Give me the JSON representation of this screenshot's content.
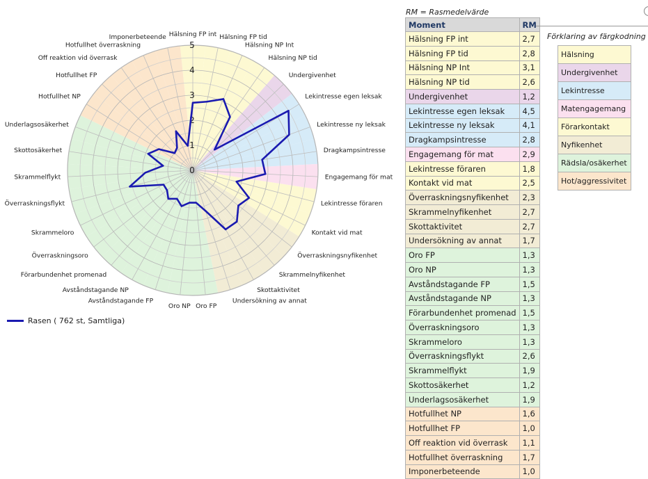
{
  "colors": {
    "halsning": "#fdf9d2",
    "undergivenhet": "#ead6ea",
    "lekintresse": "#d6ebf8",
    "matengagemang": "#fbe0ef",
    "forarkontakt": "#fdf9d2",
    "nyfikenhet": "#f2ecd5",
    "radsla": "#def3dc",
    "hot": "#fce6cc",
    "series": "#1a1ab0"
  },
  "chart_data": {
    "type": "radar",
    "ticks": [
      "0",
      "1",
      "2",
      "3",
      "4",
      "5"
    ],
    "rmax": 5,
    "series": [
      {
        "name": "Rasen ( 762 st, Samtliga)",
        "values": [
          2.7,
          2.8,
          3.1,
          2.6,
          1.2,
          4.5,
          4.1,
          2.8,
          2.9,
          1.8,
          2.5,
          2.3,
          2.7,
          2.7,
          1.7,
          1.3,
          1.3,
          1.5,
          1.3,
          1.5,
          1.3,
          1.3,
          2.6,
          1.9,
          1.2,
          1.9,
          1.6,
          1.0,
          1.1,
          1.7,
          1.0
        ]
      }
    ],
    "categories": [
      {
        "label": "Hälsning FP int",
        "group": "halsning"
      },
      {
        "label": "Hälsning FP tid",
        "group": "halsning"
      },
      {
        "label": "Hälsning NP Int",
        "group": "halsning"
      },
      {
        "label": "Hälsning NP tid",
        "group": "halsning"
      },
      {
        "label": "Undergivenhet",
        "group": "undergivenhet"
      },
      {
        "label": "Lekintresse egen leksak",
        "group": "lekintresse"
      },
      {
        "label": "Lekintresse ny leksak",
        "group": "lekintresse"
      },
      {
        "label": "Dragkampsintresse",
        "group": "lekintresse"
      },
      {
        "label": "Engagemang för mat",
        "group": "matengagemang"
      },
      {
        "label": "Lekintresse föraren",
        "group": "forarkontakt"
      },
      {
        "label": "Kontakt vid mat",
        "group": "forarkontakt"
      },
      {
        "label": "Överraskningsnyfikenhet",
        "group": "nyfikenhet"
      },
      {
        "label": "Skrammelnyfikenhet",
        "group": "nyfikenhet"
      },
      {
        "label": "Skottaktivitet",
        "group": "nyfikenhet"
      },
      {
        "label": "Undersökning av annat",
        "group": "nyfikenhet"
      },
      {
        "label": "Oro FP",
        "group": "radsla"
      },
      {
        "label": "Oro NP",
        "group": "radsla"
      },
      {
        "label": "Avståndstagande FP",
        "group": "radsla"
      },
      {
        "label": "Avståndstagande NP",
        "group": "radsla"
      },
      {
        "label": "Förarbundenhet promenad",
        "group": "radsla"
      },
      {
        "label": "Överraskningsoro",
        "group": "radsla"
      },
      {
        "label": "Skrammeloro",
        "group": "radsla"
      },
      {
        "label": "Överraskningsflykt",
        "group": "radsla"
      },
      {
        "label": "Skrammelflykt",
        "group": "radsla"
      },
      {
        "label": "Skottosäkerhet",
        "group": "radsla"
      },
      {
        "label": "Underlagsosäkerhet",
        "group": "radsla"
      },
      {
        "label": "Hotfullhet NP",
        "group": "hot"
      },
      {
        "label": "Hotfullhet FP",
        "group": "hot"
      },
      {
        "label": "Off reaktion vid överrask",
        "group": "hot"
      },
      {
        "label": "Hotfullhet överraskning",
        "group": "hot"
      },
      {
        "label": "Imponerbeteende",
        "group": "hot"
      }
    ]
  },
  "legend": {
    "label": "Rasen ( 762 st, Samtliga)"
  },
  "table": {
    "note": "RM = Rasmedelvärde",
    "header_moment": "Moment",
    "header_rm": "RM",
    "rows": [
      {
        "name": "Hälsning FP int",
        "rm": "2,7",
        "group": "halsning"
      },
      {
        "name": "Hälsning FP tid",
        "rm": "2,8",
        "group": "halsning"
      },
      {
        "name": "Hälsning NP Int",
        "rm": "3,1",
        "group": "halsning"
      },
      {
        "name": "Hälsning NP tid",
        "rm": "2,6",
        "group": "halsning"
      },
      {
        "name": "Undergivenhet",
        "rm": "1,2",
        "group": "undergivenhet"
      },
      {
        "name": "Lekintresse egen leksak",
        "rm": "4,5",
        "group": "lekintresse"
      },
      {
        "name": "Lekintresse ny leksak",
        "rm": "4,1",
        "group": "lekintresse"
      },
      {
        "name": "Dragkampsintresse",
        "rm": "2,8",
        "group": "lekintresse"
      },
      {
        "name": "Engagemang för mat",
        "rm": "2,9",
        "group": "matengagemang"
      },
      {
        "name": "Lekintresse föraren",
        "rm": "1,8",
        "group": "forarkontakt"
      },
      {
        "name": "Kontakt vid mat",
        "rm": "2,5",
        "group": "forarkontakt"
      },
      {
        "name": "Överraskningsnyfikenhet",
        "rm": "2,3",
        "group": "nyfikenhet"
      },
      {
        "name": "Skrammelnyfikenhet",
        "rm": "2,7",
        "group": "nyfikenhet"
      },
      {
        "name": "Skottaktivitet",
        "rm": "2,7",
        "group": "nyfikenhet"
      },
      {
        "name": "Undersökning av annat",
        "rm": "1,7",
        "group": "nyfikenhet"
      },
      {
        "name": "Oro FP",
        "rm": "1,3",
        "group": "radsla"
      },
      {
        "name": "Oro NP",
        "rm": "1,3",
        "group": "radsla"
      },
      {
        "name": "Avståndstagande FP",
        "rm": "1,5",
        "group": "radsla"
      },
      {
        "name": "Avståndstagande NP",
        "rm": "1,3",
        "group": "radsla"
      },
      {
        "name": "Förarbundenhet promenad",
        "rm": "1,5",
        "group": "radsla"
      },
      {
        "name": "Överraskningsoro",
        "rm": "1,3",
        "group": "radsla"
      },
      {
        "name": "Skrammeloro",
        "rm": "1,3",
        "group": "radsla"
      },
      {
        "name": "Överraskningsflykt",
        "rm": "2,6",
        "group": "radsla"
      },
      {
        "name": "Skrammelflykt",
        "rm": "1,9",
        "group": "radsla"
      },
      {
        "name": "Skottosäkerhet",
        "rm": "1,2",
        "group": "radsla"
      },
      {
        "name": "Underlagsosäkerhet",
        "rm": "1,9",
        "group": "radsla"
      },
      {
        "name": "Hotfullhet NP",
        "rm": "1,6",
        "group": "hot"
      },
      {
        "name": "Hotfullhet FP",
        "rm": "1,0",
        "group": "hot"
      },
      {
        "name": "Off reaktion vid överrask",
        "rm": "1,1",
        "group": "hot"
      },
      {
        "name": "Hotfullhet överraskning",
        "rm": "1,7",
        "group": "hot"
      },
      {
        "name": "Imponerbeteende",
        "rm": "1,0",
        "group": "hot"
      }
    ]
  },
  "color_key": {
    "title": "Förklaring av färgkodning",
    "items": [
      {
        "label": "Hälsning",
        "group": "halsning"
      },
      {
        "label": "Undergivenhet",
        "group": "undergivenhet"
      },
      {
        "label": "Lekintresse",
        "group": "lekintresse"
      },
      {
        "label": "Matengagemang",
        "group": "matengagemang"
      },
      {
        "label": "Förarkontakt",
        "group": "forarkontakt"
      },
      {
        "label": "Nyfikenhet",
        "group": "nyfikenhet"
      },
      {
        "label": "Rädsla/osäkerhet",
        "group": "radsla"
      },
      {
        "label": "Hot/aggressivitet",
        "group": "hot"
      }
    ]
  }
}
